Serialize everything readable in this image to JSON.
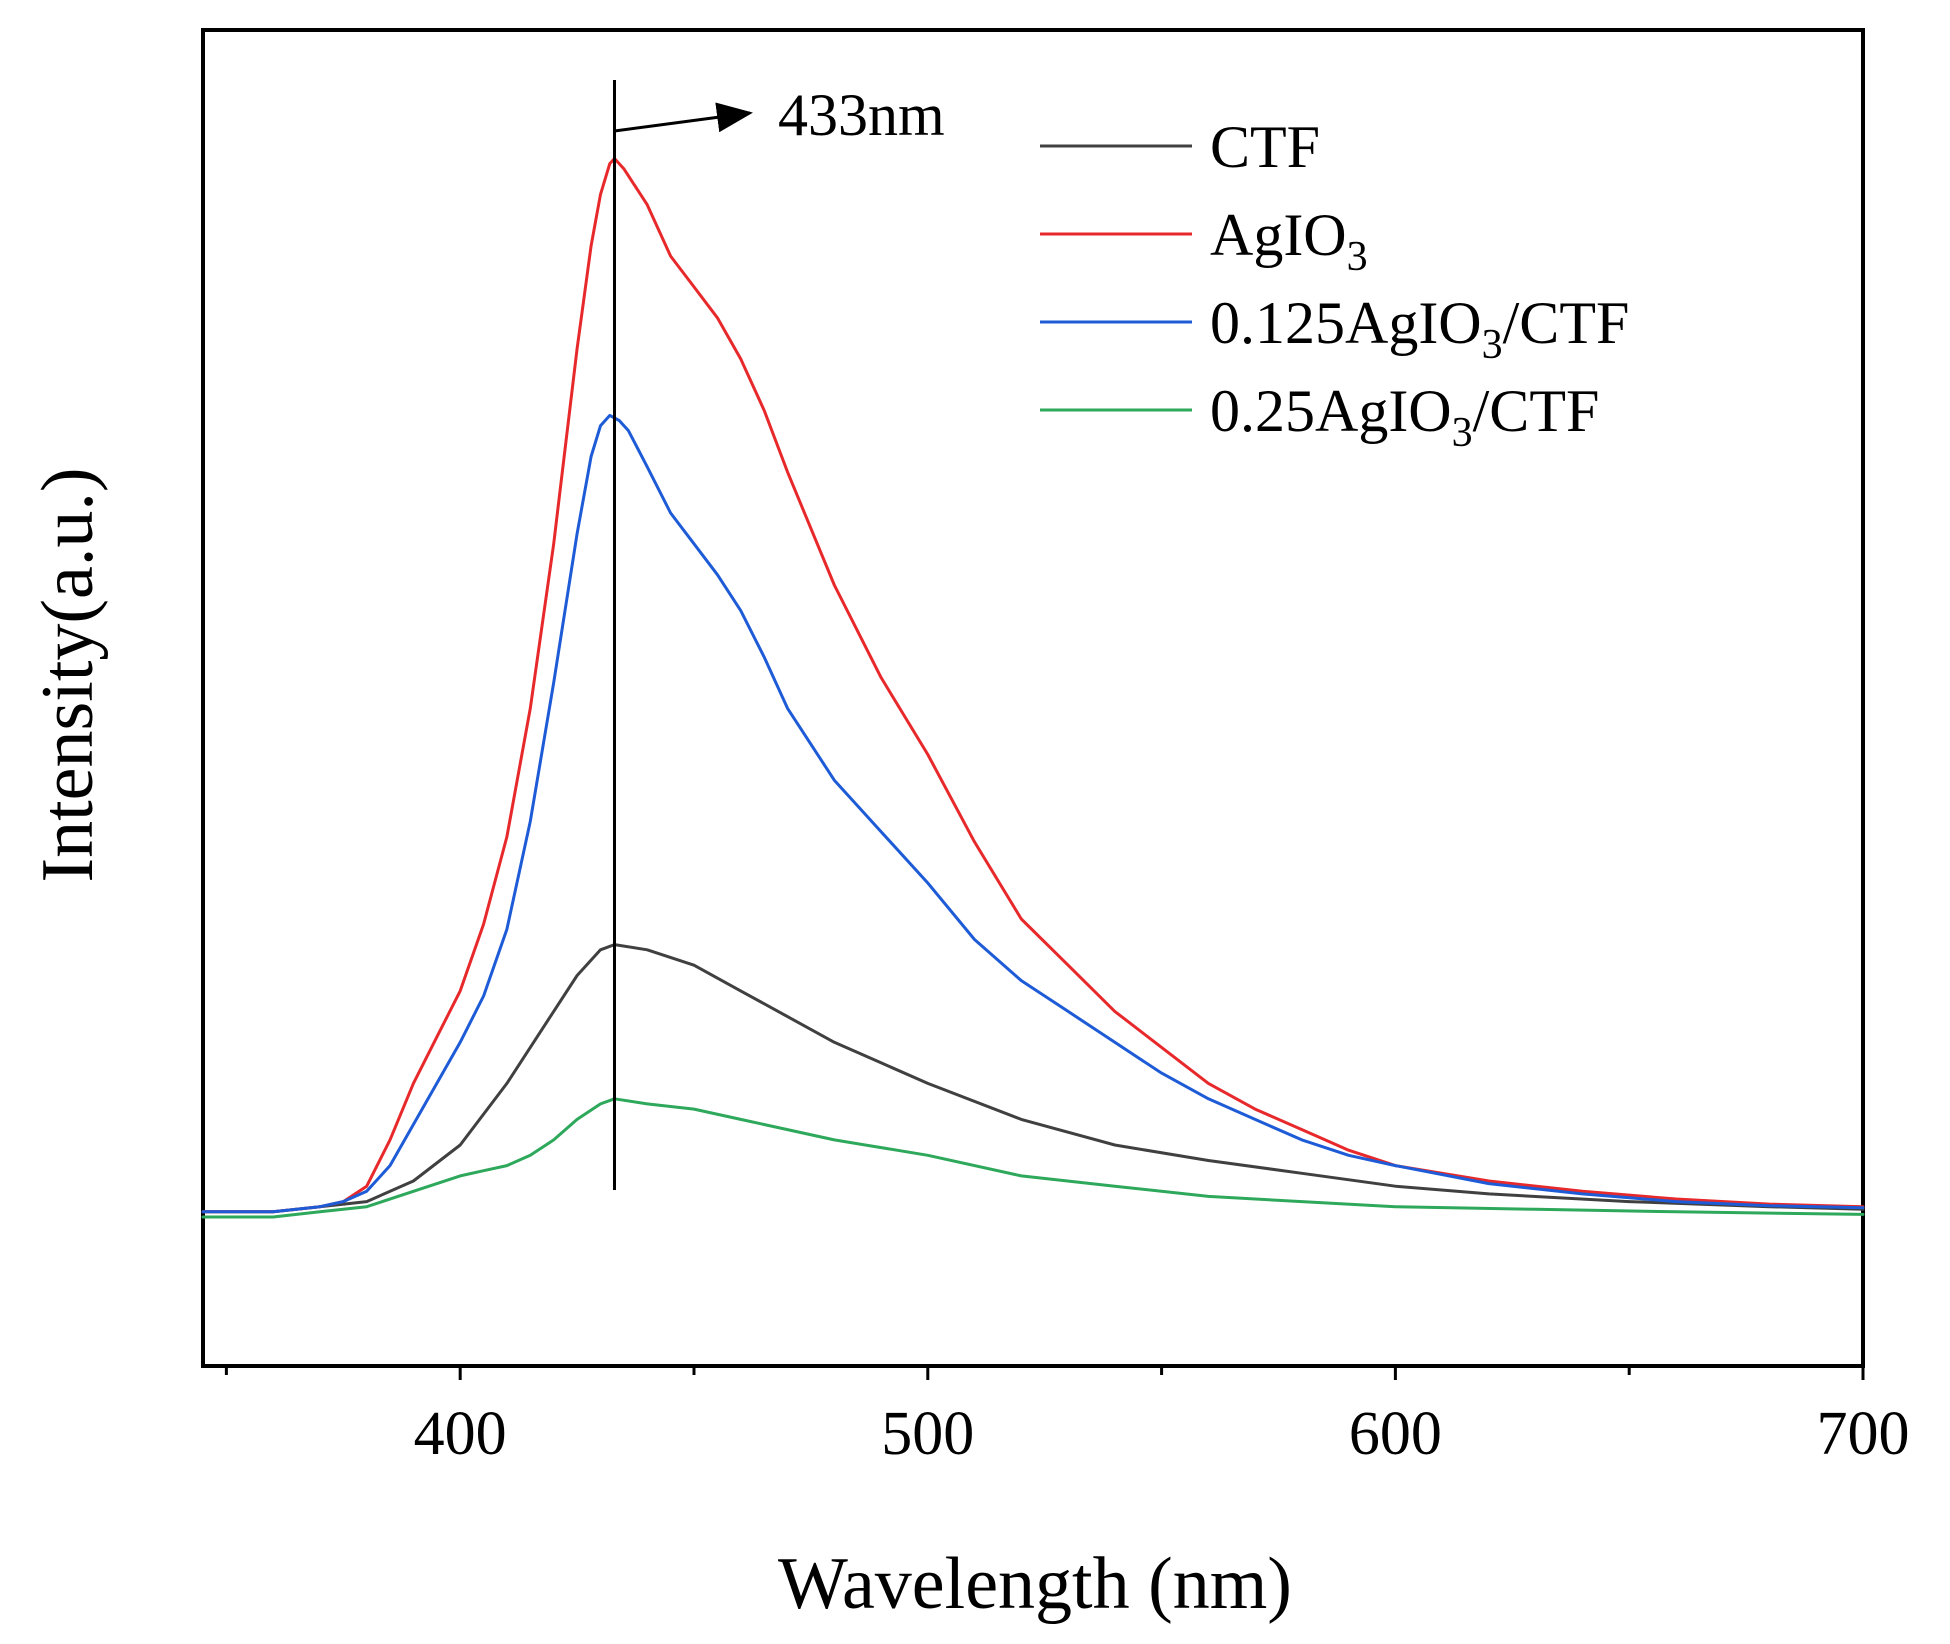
{
  "chart_data": {
    "type": "line",
    "title": "",
    "xlabel": "Wavelength (nm)",
    "ylabel": "Intensity(a.u.)",
    "xlim": [
      345,
      700
    ],
    "ylim": [
      -0.3,
      2.3
    ],
    "x_ticks": [
      400,
      500,
      600,
      700
    ],
    "x_tick_labels": [
      "400",
      "500",
      "600",
      "700"
    ],
    "x_minor_ticks": [
      350,
      450,
      550,
      650
    ],
    "y_ticks_shown": false,
    "grid": false,
    "legend_position": "top-right",
    "annotation": {
      "label": "433nm",
      "x": 433
    },
    "series": [
      {
        "name": "CTF",
        "subscript": "",
        "suffix": "",
        "color": "#404040",
        "x": [
          345,
          360,
          370,
          380,
          390,
          400,
          410,
          420,
          425,
          430,
          433,
          440,
          450,
          460,
          470,
          480,
          490,
          500,
          520,
          540,
          560,
          580,
          600,
          620,
          650,
          680,
          700
        ],
        "y": [
          0.0,
          0.0,
          0.01,
          0.02,
          0.06,
          0.13,
          0.25,
          0.39,
          0.46,
          0.51,
          0.52,
          0.51,
          0.48,
          0.43,
          0.38,
          0.33,
          0.29,
          0.25,
          0.18,
          0.13,
          0.1,
          0.075,
          0.05,
          0.035,
          0.02,
          0.01,
          0.005
        ]
      },
      {
        "name": "AgIO",
        "subscript": "3",
        "suffix": "",
        "color": "#e8292b",
        "x": [
          345,
          360,
          370,
          375,
          380,
          385,
          390,
          395,
          400,
          405,
          410,
          415,
          420,
          425,
          428,
          430,
          432,
          433,
          435,
          440,
          445,
          450,
          455,
          460,
          465,
          470,
          480,
          490,
          500,
          510,
          520,
          530,
          540,
          550,
          560,
          570,
          580,
          590,
          600,
          620,
          640,
          660,
          680,
          700
        ],
        "y": [
          0.0,
          0.0,
          0.01,
          0.02,
          0.05,
          0.14,
          0.25,
          0.34,
          0.43,
          0.56,
          0.73,
          0.98,
          1.3,
          1.68,
          1.88,
          1.98,
          2.04,
          2.05,
          2.03,
          1.96,
          1.86,
          1.8,
          1.74,
          1.66,
          1.56,
          1.44,
          1.22,
          1.04,
          0.89,
          0.72,
          0.57,
          0.48,
          0.39,
          0.32,
          0.25,
          0.2,
          0.16,
          0.12,
          0.09,
          0.06,
          0.04,
          0.025,
          0.015,
          0.01
        ]
      },
      {
        "name": "0.125AgIO",
        "subscript": "3",
        "suffix": "/CTF",
        "color": "#1e5bd7",
        "x": [
          345,
          360,
          370,
          375,
          380,
          385,
          390,
          395,
          400,
          405,
          410,
          415,
          420,
          425,
          428,
          430,
          432,
          434,
          436,
          440,
          445,
          450,
          455,
          460,
          465,
          470,
          480,
          490,
          500,
          510,
          520,
          530,
          540,
          550,
          560,
          570,
          580,
          590,
          600,
          620,
          640,
          660,
          680,
          700
        ],
        "y": [
          0.0,
          0.0,
          0.01,
          0.02,
          0.04,
          0.09,
          0.17,
          0.25,
          0.33,
          0.42,
          0.55,
          0.76,
          1.03,
          1.32,
          1.47,
          1.53,
          1.55,
          1.54,
          1.52,
          1.45,
          1.36,
          1.3,
          1.24,
          1.17,
          1.08,
          0.98,
          0.84,
          0.74,
          0.64,
          0.53,
          0.45,
          0.39,
          0.33,
          0.27,
          0.22,
          0.18,
          0.14,
          0.11,
          0.09,
          0.055,
          0.035,
          0.02,
          0.012,
          0.008
        ]
      },
      {
        "name": "0.25AgIO",
        "subscript": "3",
        "suffix": "/CTF",
        "color": "#2ea85b",
        "x": [
          345,
          360,
          370,
          380,
          390,
          400,
          405,
          410,
          415,
          420,
          425,
          430,
          433,
          440,
          450,
          460,
          470,
          480,
          500,
          520,
          540,
          560,
          580,
          600,
          630,
          660,
          700
        ],
        "y": [
          -0.01,
          -0.01,
          0.0,
          0.01,
          0.04,
          0.07,
          0.08,
          0.09,
          0.11,
          0.14,
          0.18,
          0.21,
          0.22,
          0.21,
          0.2,
          0.18,
          0.16,
          0.14,
          0.11,
          0.07,
          0.05,
          0.03,
          0.02,
          0.01,
          0.005,
          0.0,
          -0.005
        ]
      }
    ]
  }
}
